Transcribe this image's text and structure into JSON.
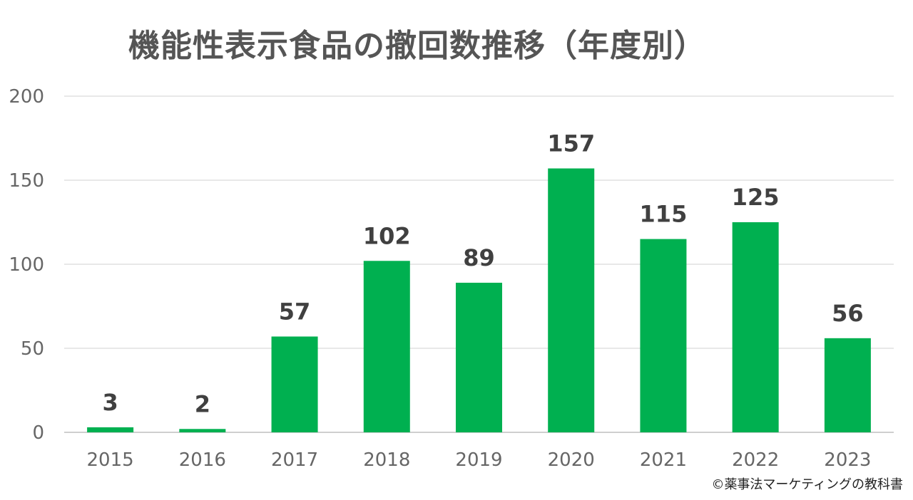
{
  "chart_data": {
    "type": "bar",
    "title": "機能性表示食品の撤回数推移（年度別）",
    "categories": [
      "2015",
      "2016",
      "2017",
      "2018",
      "2019",
      "2020",
      "2021",
      "2022",
      "2023"
    ],
    "values": [
      3,
      2,
      57,
      102,
      89,
      157,
      115,
      125,
      56
    ],
    "ylim": [
      0,
      200
    ],
    "yticks": [
      0,
      50,
      100,
      150,
      200
    ],
    "xlabel": "",
    "ylabel": "",
    "grid": true,
    "legend": "none",
    "bar_color": "#00b050",
    "data_labels": true
  },
  "footer": {
    "copyright": "©薬事法マーケティングの教科書"
  }
}
